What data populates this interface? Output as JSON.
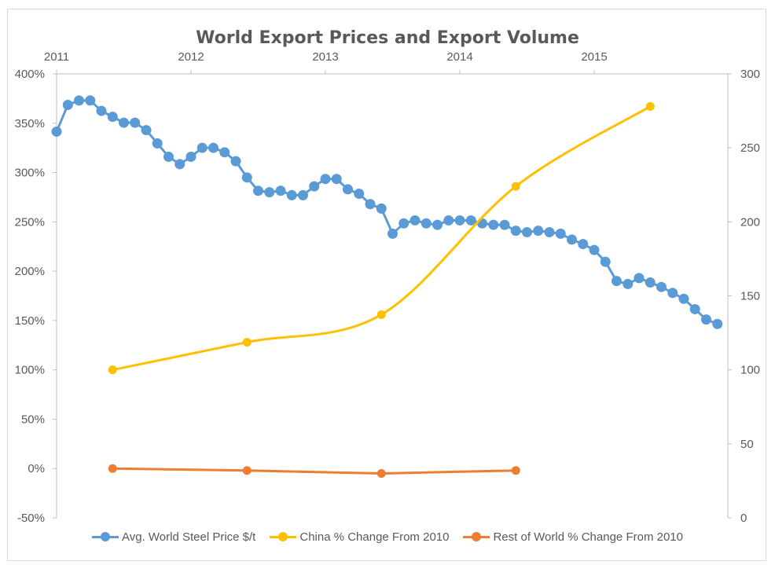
{
  "chart_data": {
    "type": "line",
    "title": "World Export Prices and Export Volume",
    "x_axis": {
      "position": "top",
      "tick_labels": [
        "2011",
        "2012",
        "2013",
        "2014",
        "2015"
      ],
      "range_months": [
        0,
        60
      ]
    },
    "y_left": {
      "tick_labels": [
        "400%",
        "350%",
        "300%",
        "250%",
        "200%",
        "150%",
        "100%",
        "50%",
        "0%",
        "-50%"
      ],
      "tick_values": [
        400,
        350,
        300,
        250,
        200,
        150,
        100,
        50,
        0,
        -50
      ],
      "range": [
        -50,
        400
      ]
    },
    "y_right": {
      "tick_labels": [
        "300",
        "250",
        "200",
        "150",
        "100",
        "50",
        "0"
      ],
      "tick_values": [
        300,
        250,
        200,
        150,
        100,
        50,
        0
      ],
      "range": [
        0,
        300
      ]
    },
    "grid": false,
    "legend_position": "bottom",
    "series": [
      {
        "name": "Avg. World Steel Price $/t",
        "axis": "right",
        "color": "#5b9bd5",
        "smooth": false,
        "x": [
          0,
          1,
          2,
          3,
          4,
          5,
          6,
          7,
          8,
          9,
          10,
          11,
          12,
          13,
          14,
          15,
          16,
          17,
          18,
          19,
          20,
          21,
          22,
          23,
          24,
          25,
          26,
          27,
          28,
          29,
          30,
          31,
          32,
          33,
          34,
          35,
          36,
          37,
          38,
          39,
          40,
          41,
          42,
          43,
          44,
          45,
          46,
          47,
          48,
          49,
          50,
          51,
          52,
          53,
          54,
          55,
          56,
          57,
          58,
          59
        ],
        "values": [
          261,
          279,
          282,
          282,
          275,
          271,
          267,
          267,
          262,
          253,
          244,
          239,
          244,
          250,
          250,
          247,
          241,
          230,
          221,
          220,
          221,
          218,
          218,
          224,
          229,
          229,
          222,
          219,
          212,
          209,
          192,
          199,
          201,
          199,
          198,
          201,
          201,
          201,
          199,
          198,
          198,
          194,
          193,
          194,
          193,
          192,
          188,
          185,
          181,
          173,
          160,
          158,
          162,
          159,
          156,
          152,
          148,
          141,
          134,
          131
        ]
      },
      {
        "name": "China % Change From 2010",
        "axis": "left",
        "color": "#ffc000",
        "smooth": true,
        "x": [
          5,
          17,
          29,
          41,
          53
        ],
        "values": [
          100,
          128,
          156,
          286,
          367
        ]
      },
      {
        "name": "Rest of World % Change From 2010",
        "axis": "left",
        "color": "#ed7d31",
        "smooth": false,
        "x": [
          5,
          17,
          29,
          41
        ],
        "values": [
          0,
          -2,
          -5,
          -2
        ]
      }
    ]
  }
}
